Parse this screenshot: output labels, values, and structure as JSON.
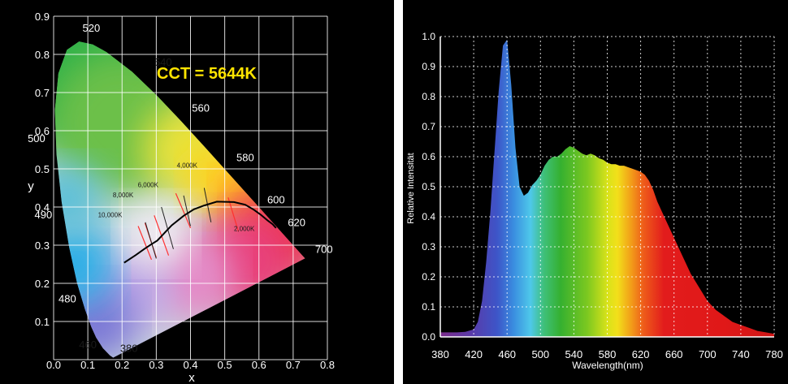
{
  "chart_data": [
    {
      "type": "scatter",
      "title": "CCT = 5644K",
      "xlabel": "x",
      "ylabel": "y",
      "xlim": [
        0.0,
        0.8
      ],
      "ylim": [
        0.0,
        0.9
      ],
      "x_ticks": [
        "0.0",
        "0.1",
        "0.2",
        "0.3",
        "0.4",
        "0.5",
        "0.6",
        "0.7",
        "0.8"
      ],
      "y_ticks": [
        "0.1",
        "0.2",
        "0.3",
        "0.4",
        "0.5",
        "0.6",
        "0.7",
        "0.8",
        "0.9"
      ],
      "grid": true,
      "colors": {
        "title": "#ffe400",
        "isotherm": "#ff3030",
        "locus": "#000000"
      },
      "spectral_locus": [
        {
          "nm": 380,
          "x": 0.1741,
          "y": 0.005
        },
        {
          "nm": 440,
          "x": 0.1644,
          "y": 0.0109
        },
        {
          "nm": 460,
          "x": 0.144,
          "y": 0.0297
        },
        {
          "nm": 470,
          "x": 0.1241,
          "y": 0.0578
        },
        {
          "nm": 475,
          "x": 0.1096,
          "y": 0.0868
        },
        {
          "nm": 480,
          "x": 0.0913,
          "y": 0.1327
        },
        {
          "nm": 485,
          "x": 0.0687,
          "y": 0.2007
        },
        {
          "nm": 490,
          "x": 0.0454,
          "y": 0.295
        },
        {
          "nm": 495,
          "x": 0.0235,
          "y": 0.4127
        },
        {
          "nm": 500,
          "x": 0.0082,
          "y": 0.5384
        },
        {
          "nm": 505,
          "x": 0.0039,
          "y": 0.6548
        },
        {
          "nm": 510,
          "x": 0.0139,
          "y": 0.7502
        },
        {
          "nm": 515,
          "x": 0.0389,
          "y": 0.812
        },
        {
          "nm": 520,
          "x": 0.0743,
          "y": 0.8338
        },
        {
          "nm": 525,
          "x": 0.1142,
          "y": 0.8262
        },
        {
          "nm": 530,
          "x": 0.1547,
          "y": 0.8059
        },
        {
          "nm": 540,
          "x": 0.2296,
          "y": 0.7543
        },
        {
          "nm": 550,
          "x": 0.3016,
          "y": 0.6923
        },
        {
          "nm": 560,
          "x": 0.3731,
          "y": 0.6245
        },
        {
          "nm": 570,
          "x": 0.4441,
          "y": 0.5547
        },
        {
          "nm": 580,
          "x": 0.5125,
          "y": 0.4866
        },
        {
          "nm": 590,
          "x": 0.5752,
          "y": 0.4242
        },
        {
          "nm": 600,
          "x": 0.627,
          "y": 0.3725
        },
        {
          "nm": 620,
          "x": 0.6915,
          "y": 0.3083
        },
        {
          "nm": 650,
          "x": 0.726,
          "y": 0.274
        },
        {
          "nm": 700,
          "x": 0.7347,
          "y": 0.2653
        }
      ],
      "wavelength_labels": [
        {
          "text": "520",
          "x": 0.11,
          "y": 0.86
        },
        {
          "text": "540",
          "x": 0.32,
          "y": 0.77
        },
        {
          "text": "560",
          "x": 0.43,
          "y": 0.65
        },
        {
          "text": "580",
          "x": 0.56,
          "y": 0.52
        },
        {
          "text": "600",
          "x": 0.65,
          "y": 0.41
        },
        {
          "text": "620",
          "x": 0.71,
          "y": 0.35
        },
        {
          "text": "700",
          "x": 0.79,
          "y": 0.28
        },
        {
          "text": "500",
          "x": -0.05,
          "y": 0.57
        },
        {
          "text": "490",
          "x": -0.03,
          "y": 0.37
        },
        {
          "text": "480",
          "x": 0.04,
          "y": 0.15
        },
        {
          "text": "460",
          "x": 0.1,
          "y": 0.03
        },
        {
          "text": "380",
          "x": 0.22,
          "y": 0.02
        }
      ],
      "planckian_locus": [
        [
          0.206,
          0.254
        ],
        [
          0.24,
          0.274
        ],
        [
          0.265,
          0.29
        ],
        [
          0.285,
          0.302
        ],
        [
          0.303,
          0.312
        ],
        [
          0.324,
          0.332
        ],
        [
          0.345,
          0.352
        ],
        [
          0.38,
          0.377
        ],
        [
          0.41,
          0.394
        ],
        [
          0.44,
          0.404
        ],
        [
          0.477,
          0.414
        ],
        [
          0.527,
          0.413
        ],
        [
          0.56,
          0.406
        ],
        [
          0.585,
          0.393
        ],
        [
          0.605,
          0.38
        ],
        [
          0.625,
          0.365
        ],
        [
          0.64,
          0.355
        ],
        [
          0.65,
          0.345
        ]
      ],
      "isotherms": [
        {
          "label": "10,000K",
          "x1": 0.247,
          "y1": 0.35,
          "x2": 0.286,
          "y2": 0.262,
          "label_x": 0.165,
          "label_y": 0.373
        },
        {
          "label": "8,000K",
          "x1": 0.267,
          "y1": 0.358,
          "x2": 0.3,
          "y2": 0.268,
          "label_x": 0.203,
          "label_y": 0.426
        },
        {
          "label": "6,000K",
          "x1": 0.294,
          "y1": 0.378,
          "x2": 0.336,
          "y2": 0.273,
          "label_x": 0.276,
          "label_y": 0.452
        },
        {
          "label": "4,000K",
          "x1": 0.357,
          "y1": 0.436,
          "x2": 0.4,
          "y2": 0.345,
          "label_x": 0.39,
          "label_y": 0.503
        },
        {
          "label": "2,000K",
          "x1": 0.51,
          "y1": 0.425,
          "x2": 0.54,
          "y2": 0.336,
          "label_x": 0.557,
          "label_y": 0.337
        }
      ]
    },
    {
      "type": "area",
      "title": "",
      "xlabel": "Wavelength(nm)",
      "ylabel": "Relative Intensität",
      "xlim": [
        380,
        780
      ],
      "ylim": [
        0.0,
        1.0
      ],
      "x_ticks": [
        "380",
        "420",
        "460",
        "500",
        "540",
        "580",
        "620",
        "660",
        "700",
        "740",
        "780"
      ],
      "y_ticks": [
        "0.0",
        "0.1",
        "0.2",
        "0.3",
        "0.4",
        "0.5",
        "0.6",
        "0.7",
        "0.8",
        "0.9",
        "1.0"
      ],
      "grid": true,
      "series": [
        {
          "x": [
            380,
            400,
            410,
            420,
            425,
            430,
            435,
            440,
            445,
            450,
            455,
            460,
            465,
            470,
            475,
            480,
            485,
            490,
            495,
            500,
            505,
            510,
            515,
            520,
            525,
            530,
            535,
            540,
            545,
            550,
            555,
            560,
            565,
            570,
            575,
            580,
            585,
            590,
            595,
            600,
            605,
            610,
            615,
            620,
            625,
            630,
            635,
            640,
            645,
            650,
            660,
            670,
            680,
            690,
            700,
            710,
            720,
            730,
            740,
            750,
            760,
            770,
            780
          ],
          "values": [
            0.015,
            0.015,
            0.017,
            0.025,
            0.05,
            0.12,
            0.25,
            0.42,
            0.62,
            0.82,
            0.97,
            0.99,
            0.84,
            0.63,
            0.5,
            0.47,
            0.48,
            0.505,
            0.52,
            0.54,
            0.57,
            0.59,
            0.6,
            0.6,
            0.61,
            0.625,
            0.635,
            0.63,
            0.62,
            0.61,
            0.605,
            0.61,
            0.605,
            0.595,
            0.59,
            0.58,
            0.575,
            0.575,
            0.57,
            0.57,
            0.565,
            0.56,
            0.555,
            0.55,
            0.54,
            0.52,
            0.49,
            0.45,
            0.42,
            0.39,
            0.33,
            0.27,
            0.21,
            0.165,
            0.12,
            0.09,
            0.07,
            0.05,
            0.04,
            0.03,
            0.02,
            0.015,
            0.01
          ]
        }
      ]
    }
  ]
}
